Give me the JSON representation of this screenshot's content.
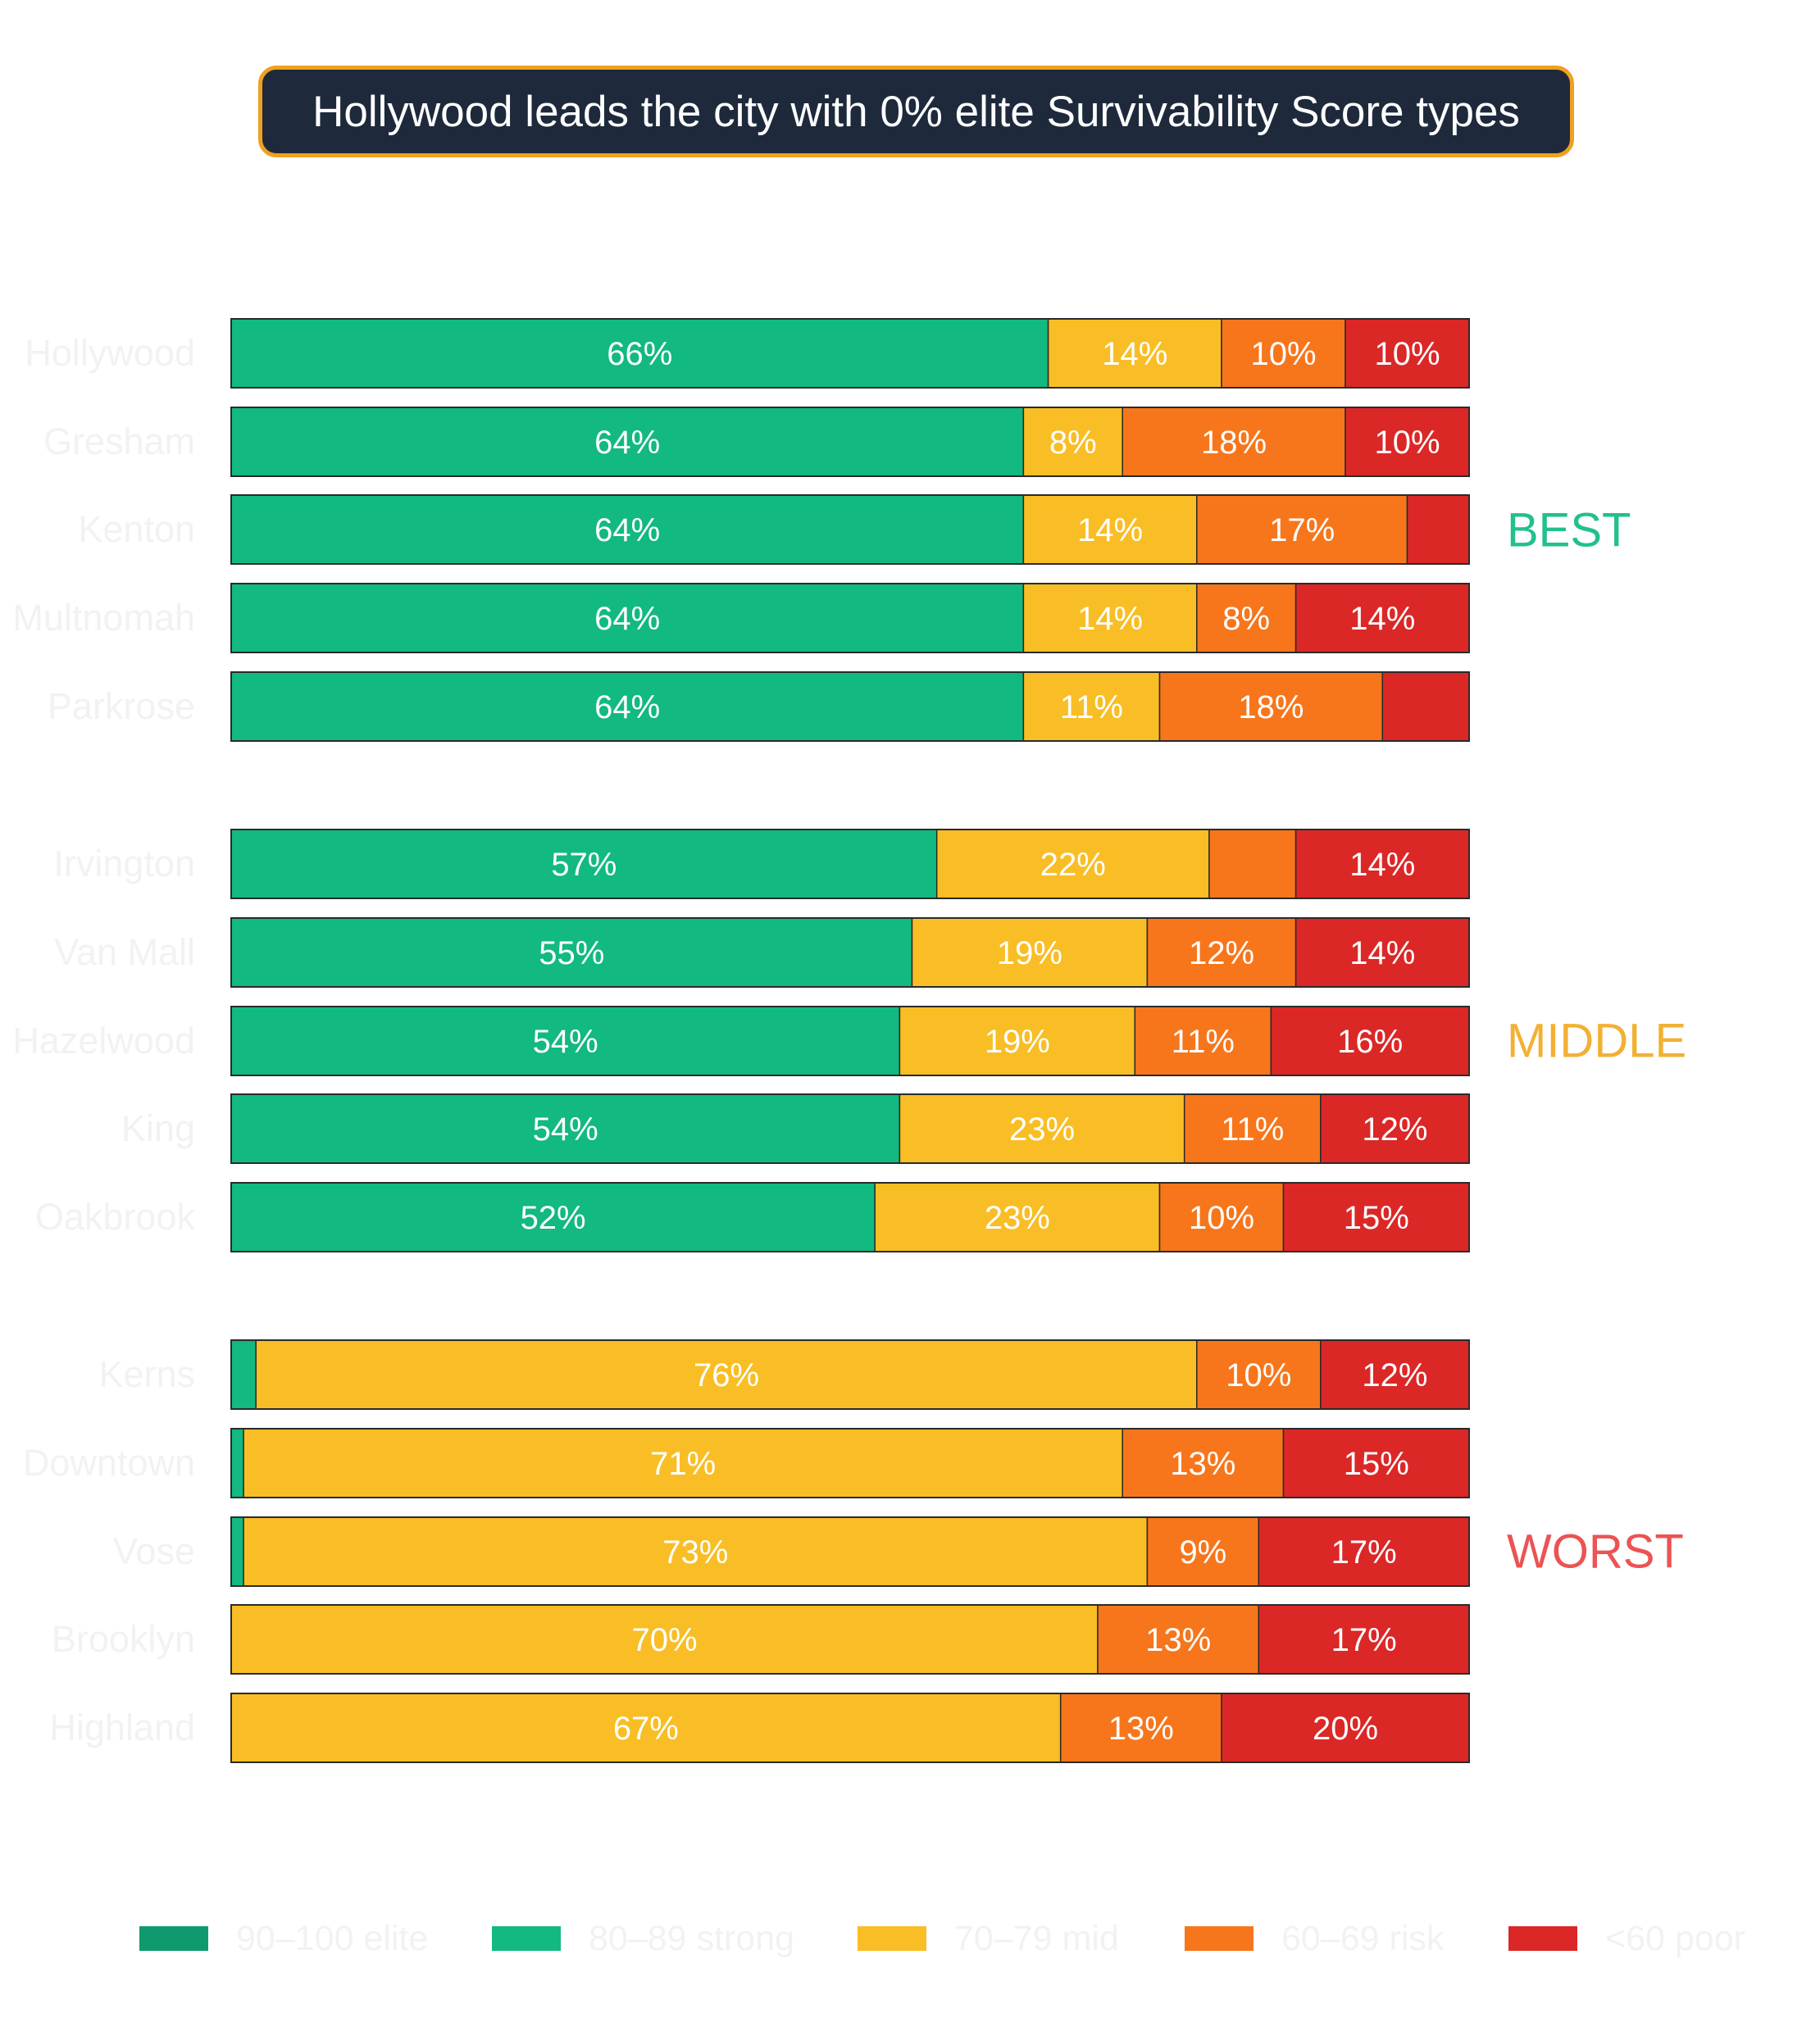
{
  "title": "Hollywood leads the city with 0% elite Survivability Score types",
  "colors": {
    "title_bg": "#1e2a3b",
    "title_border": "#f0a020",
    "bar_outline": "#2a2a2a",
    "label_text": "#ffffff",
    "row_label_text": "#f2f2f2"
  },
  "chart_data": {
    "type": "bar",
    "orientation": "horizontal",
    "stacked": true,
    "normalized_percent": true,
    "categories": [
      "Hollywood",
      "Gresham",
      "Kenton",
      "Multnomah",
      "Parkrose",
      "Irvington",
      "Van Mall",
      "Hazelwood",
      "King",
      "Oakbrook",
      "Kerns",
      "Downtown",
      "Vose",
      "Brooklyn",
      "Highland"
    ],
    "series": [
      {
        "name": "90–100 elite",
        "color": "#0e9a6e",
        "values": [
          0,
          0,
          0,
          0,
          0,
          0,
          0,
          0,
          0,
          0,
          0,
          0,
          0,
          0,
          0
        ]
      },
      {
        "name": "80–89 strong",
        "color": "#12b981",
        "values": [
          66,
          64,
          64,
          64,
          64,
          57,
          55,
          54,
          54,
          52,
          2,
          1,
          1,
          0,
          0
        ]
      },
      {
        "name": "70–79 mid",
        "color": "#f9be25",
        "values": [
          14,
          8,
          14,
          14,
          11,
          22,
          19,
          19,
          23,
          23,
          76,
          71,
          73,
          70,
          67
        ]
      },
      {
        "name": "60–69 risk",
        "color": "#f7761b",
        "values": [
          10,
          18,
          17,
          8,
          18,
          7,
          12,
          11,
          11,
          10,
          10,
          13,
          9,
          13,
          13
        ]
      },
      {
        "name": "<60 poor",
        "color": "#dc2727",
        "values": [
          10,
          10,
          5,
          14,
          7,
          14,
          14,
          16,
          12,
          15,
          12,
          15,
          17,
          17,
          20
        ]
      }
    ],
    "value_labels_min_percent": 8,
    "groups": [
      {
        "label": "BEST",
        "color": "#22c08e",
        "start": 0,
        "end": 4
      },
      {
        "label": "MIDDLE",
        "color": "#f2b134",
        "start": 5,
        "end": 9
      },
      {
        "label": "WORST",
        "color": "#ec5353",
        "start": 10,
        "end": 14
      }
    ],
    "legend": {
      "position": "bottom"
    },
    "xlim": [
      0,
      100
    ],
    "grid": false
  }
}
